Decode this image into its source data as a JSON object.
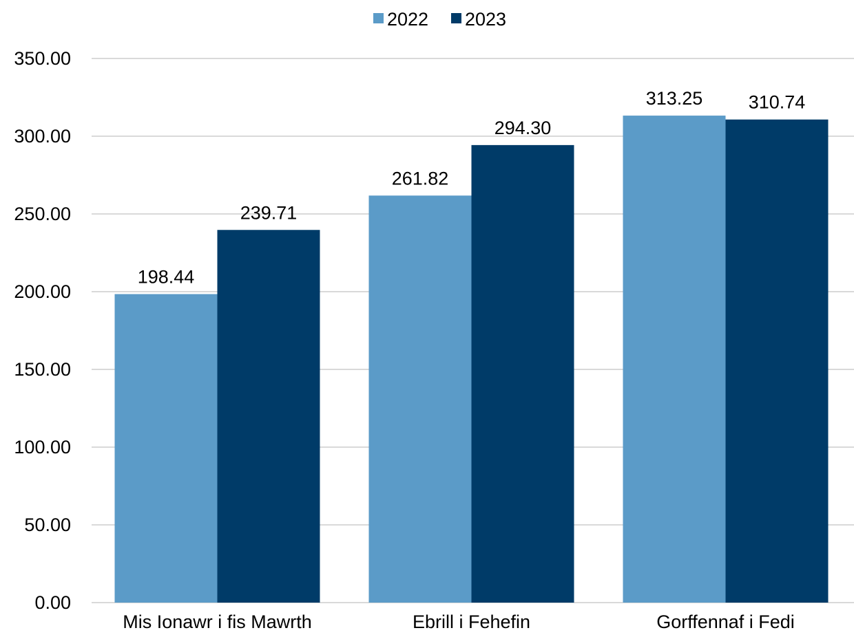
{
  "chart_data": {
    "type": "bar",
    "categories": [
      "Mis Ionawr i fis Mawrth",
      "Ebrill i Fehefin",
      "Gorffennaf i Fedi"
    ],
    "series": [
      {
        "name": "2022",
        "color": "#5b9bc8",
        "values": [
          198.44,
          261.82,
          313.25
        ],
        "labels": [
          "198.44",
          "261.82",
          "313.25"
        ]
      },
      {
        "name": "2023",
        "color": "#003b68",
        "values": [
          239.71,
          294.3,
          310.74
        ],
        "labels": [
          "239.71",
          "294.30",
          "310.74"
        ]
      }
    ],
    "ylim": [
      0,
      350
    ],
    "yticks": [
      {
        "value": 0,
        "label": "0.00"
      },
      {
        "value": 50,
        "label": "50.00"
      },
      {
        "value": 100,
        "label": "100.00"
      },
      {
        "value": 150,
        "label": "150.00"
      },
      {
        "value": 200,
        "label": "200.00"
      },
      {
        "value": 250,
        "label": "250.00"
      },
      {
        "value": 300,
        "label": "300.00"
      },
      {
        "value": 350,
        "label": "350.00"
      }
    ],
    "grid": true,
    "legend_position": "top-center"
  }
}
